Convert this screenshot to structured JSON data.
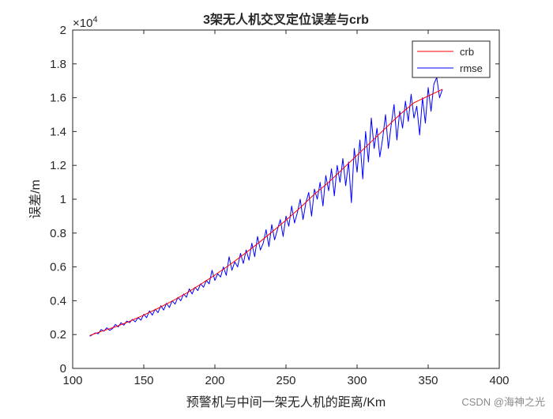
{
  "chart_data": {
    "type": "line",
    "title": "3架无人机交叉定位误差与crb",
    "xlabel": "预警机与中间一架无人机的距离/Km",
    "ylabel": "误差/m",
    "exponent": {
      "base": "×10",
      "power": "4"
    },
    "xlim": [
      100,
      400
    ],
    "ylim": [
      0,
      2
    ],
    "xticks": [
      100,
      150,
      200,
      250,
      300,
      350,
      400
    ],
    "xtick_labels": [
      "100",
      "150",
      "200",
      "250",
      "300",
      "350",
      "400"
    ],
    "yticks": [
      0,
      0.2,
      0.4,
      0.6,
      0.8,
      1,
      1.2,
      1.4,
      1.6,
      1.8,
      2
    ],
    "ytick_labels": [
      "0",
      "0.2",
      "0.4",
      "0.6",
      "0.8",
      "1",
      "1.2",
      "1.4",
      "1.6",
      "1.8",
      "2"
    ],
    "grid": false,
    "legend_position": "top-right",
    "series": [
      {
        "name": "crb",
        "color": "#ff0000",
        "x": [
          112,
          120,
          130,
          140,
          150,
          160,
          170,
          180,
          190,
          200,
          210,
          220,
          230,
          240,
          250,
          260,
          270,
          280,
          290,
          300,
          310,
          320,
          330,
          340,
          350,
          360
        ],
        "values": [
          0.195,
          0.218,
          0.246,
          0.278,
          0.315,
          0.355,
          0.398,
          0.445,
          0.497,
          0.552,
          0.61,
          0.672,
          0.737,
          0.805,
          0.876,
          0.95,
          1.03,
          1.1,
          1.18,
          1.26,
          1.34,
          1.42,
          1.5,
          1.57,
          1.61,
          1.65
        ]
      },
      {
        "name": "rmse",
        "color": "#0000ff",
        "x": [
          112,
          114,
          116,
          118,
          120,
          122,
          124,
          126,
          128,
          130,
          132,
          134,
          136,
          138,
          140,
          142,
          144,
          146,
          148,
          150,
          152,
          154,
          156,
          158,
          160,
          162,
          164,
          166,
          168,
          170,
          172,
          174,
          176,
          178,
          180,
          182,
          184,
          186,
          188,
          190,
          192,
          194,
          196,
          198,
          200,
          202,
          204,
          206,
          208,
          210,
          212,
          214,
          216,
          218,
          220,
          222,
          224,
          226,
          228,
          230,
          232,
          234,
          236,
          238,
          240,
          242,
          244,
          246,
          248,
          250,
          252,
          254,
          256,
          258,
          260,
          262,
          264,
          266,
          268,
          270,
          272,
          274,
          276,
          278,
          280,
          282,
          284,
          286,
          288,
          290,
          292,
          294,
          296,
          298,
          300,
          302,
          304,
          306,
          308,
          310,
          312,
          314,
          316,
          318,
          320,
          322,
          324,
          326,
          328,
          330,
          332,
          334,
          336,
          338,
          340,
          342,
          344,
          346,
          348,
          350,
          352,
          354,
          356,
          358,
          360
        ],
        "values": [
          0.19,
          0.2,
          0.21,
          0.205,
          0.23,
          0.22,
          0.24,
          0.225,
          0.235,
          0.26,
          0.245,
          0.27,
          0.255,
          0.28,
          0.27,
          0.29,
          0.275,
          0.3,
          0.285,
          0.32,
          0.3,
          0.34,
          0.315,
          0.35,
          0.33,
          0.37,
          0.345,
          0.385,
          0.36,
          0.4,
          0.38,
          0.42,
          0.4,
          0.44,
          0.42,
          0.47,
          0.44,
          0.48,
          0.46,
          0.5,
          0.48,
          0.52,
          0.5,
          0.58,
          0.52,
          0.56,
          0.54,
          0.6,
          0.55,
          0.66,
          0.58,
          0.63,
          0.6,
          0.68,
          0.62,
          0.7,
          0.64,
          0.74,
          0.66,
          0.78,
          0.7,
          0.74,
          0.82,
          0.72,
          0.85,
          0.76,
          0.82,
          0.88,
          0.78,
          0.9,
          0.84,
          0.96,
          0.86,
          0.92,
          1.0,
          0.88,
          0.98,
          1.04,
          0.9,
          1.06,
          1.0,
          1.1,
          0.96,
          1.14,
          1.05,
          1.18,
          1.02,
          1.2,
          1.1,
          1.24,
          1.08,
          1.22,
          0.98,
          1.3,
          1.16,
          1.35,
          1.12,
          1.4,
          1.22,
          1.48,
          1.3,
          1.42,
          1.25,
          1.36,
          1.5,
          1.3,
          1.44,
          1.56,
          1.35,
          1.52,
          1.42,
          1.58,
          1.46,
          1.62,
          1.48,
          1.55,
          1.38,
          1.6,
          1.45,
          1.66,
          1.52,
          1.68,
          1.72,
          1.6,
          1.65
        ]
      }
    ]
  },
  "watermark": "CSDN @海神之光"
}
